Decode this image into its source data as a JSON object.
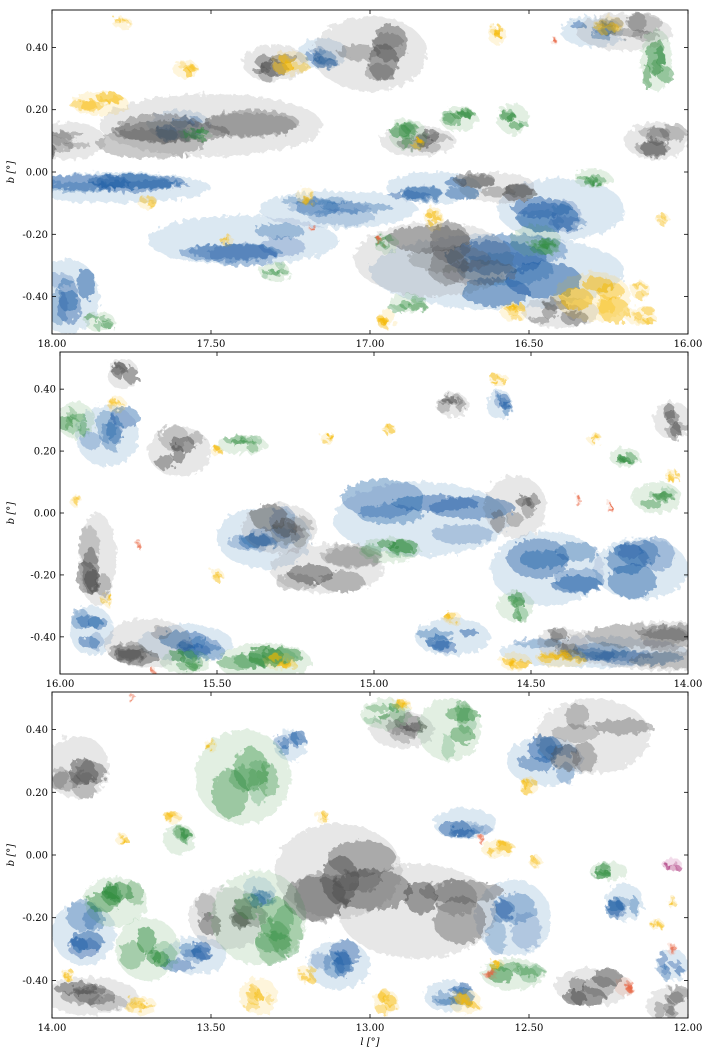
{
  "chart_data": [
    {
      "type": "heatmap",
      "xlabel": "",
      "ylabel": "b [°]",
      "xlim": [
        18.0,
        16.0
      ],
      "ylim": [
        -0.52,
        0.52
      ],
      "x_ticks": [
        "18.00",
        "17.50",
        "17.00",
        "16.50",
        "16.00"
      ],
      "y_ticks": [
        "0.40",
        "0.20",
        "0.00",
        "-0.20",
        "-0.40"
      ],
      "x_tick_values": [
        18.0,
        17.5,
        17.0,
        16.5,
        16.0
      ],
      "y_tick_values": [
        0.4,
        0.2,
        0.0,
        -0.2,
        -0.4
      ],
      "grid": false,
      "series": [
        {
          "color": "#1f5fa6",
          "blobs": [
            [
              17.8,
              -0.05,
              0.3,
              0.05
            ],
            [
              17.4,
              -0.22,
              0.3,
              0.08
            ],
            [
              17.1,
              -0.12,
              0.25,
              0.06
            ],
            [
              16.6,
              -0.32,
              0.4,
              0.12
            ],
            [
              16.4,
              -0.12,
              0.2,
              0.1
            ],
            [
              17.15,
              0.38,
              0.08,
              0.05
            ],
            [
              16.3,
              0.45,
              0.1,
              0.05
            ],
            [
              17.95,
              -0.4,
              0.1,
              0.12
            ],
            [
              17.6,
              0.15,
              0.1,
              0.05
            ],
            [
              16.8,
              -0.05,
              0.15,
              0.05
            ]
          ]
        },
        {
          "color": "#4d4d4d",
          "blobs": [
            [
              17.0,
              0.38,
              0.18,
              0.12
            ],
            [
              17.5,
              0.15,
              0.35,
              0.1
            ],
            [
              16.6,
              -0.05,
              0.12,
              0.05
            ],
            [
              16.8,
              -0.28,
              0.25,
              0.12
            ],
            [
              16.2,
              0.45,
              0.15,
              0.06
            ],
            [
              17.95,
              0.1,
              0.12,
              0.06
            ],
            [
              16.85,
              0.1,
              0.12,
              0.05
            ],
            [
              16.1,
              0.1,
              0.1,
              0.06
            ],
            [
              17.3,
              0.35,
              0.1,
              0.06
            ],
            [
              16.4,
              -0.45,
              0.12,
              0.05
            ]
          ]
        },
        {
          "color": "#2e8b3c",
          "blobs": [
            [
              16.88,
              0.12,
              0.06,
              0.05
            ],
            [
              16.72,
              0.17,
              0.06,
              0.04
            ],
            [
              16.55,
              0.17,
              0.05,
              0.05
            ],
            [
              16.1,
              0.36,
              0.05,
              0.1
            ],
            [
              16.48,
              -0.22,
              0.08,
              0.05
            ],
            [
              17.55,
              0.12,
              0.05,
              0.02
            ],
            [
              17.85,
              -0.48,
              0.05,
              0.03
            ],
            [
              16.88,
              -0.42,
              0.06,
              0.03
            ],
            [
              16.95,
              -0.23,
              0.04,
              0.03
            ],
            [
              17.3,
              -0.32,
              0.05,
              0.03
            ],
            [
              16.3,
              -0.02,
              0.06,
              0.03
            ]
          ]
        },
        {
          "color": "#f5b800",
          "blobs": [
            [
              17.78,
              0.48,
              0.03,
              0.02
            ],
            [
              17.58,
              0.33,
              0.04,
              0.03
            ],
            [
              17.25,
              0.35,
              0.06,
              0.04
            ],
            [
              17.85,
              0.22,
              0.09,
              0.04
            ],
            [
              16.8,
              -0.15,
              0.03,
              0.04
            ],
            [
              16.3,
              -0.4,
              0.12,
              0.08
            ],
            [
              16.15,
              -0.46,
              0.05,
              0.03
            ],
            [
              16.25,
              0.47,
              0.05,
              0.03
            ],
            [
              16.6,
              0.44,
              0.03,
              0.03
            ],
            [
              17.2,
              -0.08,
              0.03,
              0.03
            ],
            [
              17.7,
              -0.1,
              0.03,
              0.02
            ],
            [
              17.45,
              -0.22,
              0.02,
              0.02
            ],
            [
              16.95,
              -0.47,
              0.03,
              0.03
            ],
            [
              16.55,
              -0.45,
              0.04,
              0.03
            ],
            [
              16.08,
              -0.15,
              0.02,
              0.02
            ],
            [
              16.15,
              -0.38,
              0.03,
              0.03
            ],
            [
              16.85,
              0.09,
              0.02,
              0.02
            ]
          ]
        },
        {
          "color": "#e8623f",
          "blobs": [
            [
              17.18,
              -0.18,
              0.01,
              0.015
            ],
            [
              16.97,
              -0.22,
              0.01,
              0.015
            ],
            [
              16.42,
              0.42,
              0.01,
              0.015
            ]
          ]
        }
      ]
    },
    {
      "type": "heatmap",
      "xlabel": "",
      "ylabel": "b [°]",
      "xlim": [
        16.0,
        14.0
      ],
      "ylim": [
        -0.52,
        0.52
      ],
      "x_ticks": [
        "16.00",
        "15.50",
        "15.00",
        "14.50",
        "14.00"
      ],
      "y_ticks": [
        "0.40",
        "0.20",
        "0.00",
        "-0.20",
        "-0.40"
      ],
      "x_tick_values": [
        16.0,
        15.5,
        15.0,
        14.5,
        14.0
      ],
      "y_tick_values": [
        0.4,
        0.2,
        0.0,
        -0.2,
        -0.4
      ],
      "grid": false,
      "series": [
        {
          "color": "#1f5fa6",
          "blobs": [
            [
              14.85,
              -0.02,
              0.28,
              0.12
            ],
            [
              14.45,
              -0.18,
              0.18,
              0.12
            ],
            [
              15.35,
              -0.08,
              0.15,
              0.1
            ],
            [
              15.9,
              -0.38,
              0.07,
              0.08
            ],
            [
              15.6,
              -0.42,
              0.15,
              0.06
            ],
            [
              14.6,
              0.35,
              0.04,
              0.05
            ],
            [
              14.15,
              -0.18,
              0.15,
              0.1
            ],
            [
              14.3,
              -0.45,
              0.3,
              0.05
            ],
            [
              15.85,
              0.25,
              0.1,
              0.1
            ],
            [
              14.75,
              -0.4,
              0.12,
              0.06
            ]
          ]
        },
        {
          "color": "#4d4d4d",
          "blobs": [
            [
              15.72,
              -0.42,
              0.14,
              0.08
            ],
            [
              15.62,
              0.2,
              0.1,
              0.08
            ],
            [
              15.88,
              -0.15,
              0.06,
              0.15
            ],
            [
              15.3,
              -0.05,
              0.12,
              0.08
            ],
            [
              14.05,
              -0.43,
              0.35,
              0.08
            ],
            [
              14.55,
              0.02,
              0.1,
              0.1
            ],
            [
              14.05,
              0.3,
              0.06,
              0.06
            ],
            [
              14.75,
              0.35,
              0.05,
              0.04
            ],
            [
              15.15,
              -0.18,
              0.18,
              0.08
            ],
            [
              14.4,
              -0.42,
              0.08,
              0.05
            ],
            [
              15.8,
              0.45,
              0.05,
              0.05
            ]
          ]
        },
        {
          "color": "#2e8b3c",
          "blobs": [
            [
              15.35,
              -0.48,
              0.15,
              0.06
            ],
            [
              15.6,
              -0.48,
              0.08,
              0.04
            ],
            [
              14.95,
              -0.12,
              0.1,
              0.04
            ],
            [
              14.1,
              0.05,
              0.08,
              0.05
            ],
            [
              14.55,
              -0.3,
              0.06,
              0.05
            ],
            [
              15.42,
              0.22,
              0.08,
              0.03
            ],
            [
              14.2,
              0.18,
              0.05,
              0.03
            ],
            [
              15.95,
              0.3,
              0.06,
              0.06
            ]
          ]
        },
        {
          "color": "#f5b800",
          "blobs": [
            [
              15.82,
              0.35,
              0.03,
              0.03
            ],
            [
              14.6,
              0.43,
              0.03,
              0.02
            ],
            [
              15.3,
              -0.48,
              0.05,
              0.03
            ],
            [
              14.4,
              -0.47,
              0.08,
              0.03
            ],
            [
              14.55,
              -0.48,
              0.05,
              0.03
            ],
            [
              14.75,
              -0.34,
              0.03,
              0.02
            ],
            [
              14.3,
              0.24,
              0.02,
              0.02
            ],
            [
              15.5,
              -0.2,
              0.02,
              0.02
            ],
            [
              15.15,
              0.24,
              0.02,
              0.02
            ],
            [
              15.95,
              0.04,
              0.02,
              0.02
            ],
            [
              14.95,
              0.27,
              0.02,
              0.02
            ],
            [
              14.05,
              0.12,
              0.02,
              0.02
            ],
            [
              15.5,
              0.2,
              0.02,
              0.015
            ],
            [
              15.85,
              -0.28,
              0.02,
              0.02
            ]
          ]
        },
        {
          "color": "#e8623f",
          "blobs": [
            [
              15.7,
              -0.52,
              0.01,
              0.02
            ],
            [
              14.35,
              0.04,
              0.01,
              0.02
            ],
            [
              14.25,
              0.02,
              0.01,
              0.02
            ],
            [
              15.75,
              -0.1,
              0.01,
              0.015
            ]
          ]
        }
      ]
    },
    {
      "type": "heatmap",
      "xlabel": "l [°]",
      "ylabel": "b [°]",
      "xlim": [
        14.0,
        12.0
      ],
      "ylim": [
        -0.52,
        0.52
      ],
      "x_ticks": [
        "14.00",
        "13.50",
        "13.00",
        "12.50",
        "12.00"
      ],
      "y_ticks": [
        "0.40",
        "0.20",
        "0.00",
        "-0.20",
        "-0.40"
      ],
      "x_tick_values": [
        14.0,
        13.5,
        13.0,
        12.5,
        12.0
      ],
      "y_tick_values": [
        0.4,
        0.2,
        0.0,
        -0.2,
        -0.4
      ],
      "grid": false,
      "series": [
        {
          "color": "#1f5fa6",
          "blobs": [
            [
              13.9,
              -0.25,
              0.1,
              0.1
            ],
            [
              12.55,
              -0.2,
              0.12,
              0.12
            ],
            [
              12.2,
              -0.15,
              0.06,
              0.06
            ],
            [
              13.1,
              -0.35,
              0.1,
              0.08
            ],
            [
              12.7,
              0.1,
              0.1,
              0.05
            ],
            [
              12.45,
              0.3,
              0.12,
              0.08
            ],
            [
              13.55,
              -0.32,
              0.1,
              0.06
            ],
            [
              12.75,
              -0.45,
              0.08,
              0.05
            ],
            [
              13.25,
              0.35,
              0.05,
              0.05
            ],
            [
              12.05,
              -0.35,
              0.05,
              0.05
            ],
            [
              13.35,
              -0.12,
              0.05,
              0.05
            ]
          ]
        },
        {
          "color": "#4d4d4d",
          "blobs": [
            [
              12.85,
              -0.18,
              0.25,
              0.15
            ],
            [
              13.1,
              -0.05,
              0.2,
              0.15
            ],
            [
              13.92,
              0.28,
              0.1,
              0.1
            ],
            [
              13.88,
              -0.45,
              0.15,
              0.06
            ],
            [
              12.3,
              0.38,
              0.18,
              0.12
            ],
            [
              12.05,
              -0.48,
              0.08,
              0.06
            ],
            [
              12.3,
              -0.42,
              0.12,
              0.06
            ],
            [
              12.9,
              0.4,
              0.1,
              0.06
            ],
            [
              13.45,
              -0.2,
              0.12,
              0.1
            ]
          ]
        },
        {
          "color": "#2e8b3c",
          "blobs": [
            [
              13.4,
              0.25,
              0.15,
              0.15
            ],
            [
              13.35,
              -0.2,
              0.15,
              0.15
            ],
            [
              13.7,
              -0.3,
              0.1,
              0.1
            ],
            [
              12.75,
              0.4,
              0.1,
              0.1
            ],
            [
              12.95,
              0.45,
              0.08,
              0.05
            ],
            [
              13.8,
              -0.15,
              0.1,
              0.08
            ],
            [
              12.25,
              -0.05,
              0.06,
              0.03
            ],
            [
              12.55,
              -0.38,
              0.1,
              0.05
            ],
            [
              13.6,
              0.05,
              0.05,
              0.05
            ]
          ]
        },
        {
          "color": "#f5b800",
          "blobs": [
            [
              13.35,
              -0.45,
              0.06,
              0.06
            ],
            [
              12.95,
              -0.47,
              0.04,
              0.04
            ],
            [
              12.7,
              -0.47,
              0.05,
              0.04
            ],
            [
              12.5,
              0.22,
              0.03,
              0.03
            ],
            [
              13.2,
              -0.38,
              0.03,
              0.03
            ],
            [
              13.72,
              -0.48,
              0.05,
              0.03
            ],
            [
              12.6,
              0.02,
              0.05,
              0.03
            ],
            [
              12.48,
              -0.02,
              0.02,
              0.02
            ],
            [
              12.9,
              0.48,
              0.03,
              0.02
            ],
            [
              13.62,
              0.12,
              0.03,
              0.02
            ],
            [
              13.5,
              0.35,
              0.02,
              0.02
            ],
            [
              13.78,
              0.05,
              0.02,
              0.02
            ],
            [
              13.95,
              -0.38,
              0.02,
              0.02
            ],
            [
              12.1,
              -0.22,
              0.02,
              0.02
            ],
            [
              13.15,
              0.12,
              0.02,
              0.02
            ],
            [
              12.6,
              -0.35,
              0.02,
              0.02
            ],
            [
              12.05,
              -0.15,
              0.015,
              0.02
            ]
          ]
        },
        {
          "color": "#e8623f",
          "blobs": [
            [
              12.2,
              -0.42,
              0.03,
              0.03
            ],
            [
              12.05,
              -0.3,
              0.015,
              0.02
            ],
            [
              12.62,
              -0.38,
              0.02,
              0.02
            ],
            [
              12.65,
              0.05,
              0.01,
              0.015
            ],
            [
              13.75,
              0.5,
              0.01,
              0.015
            ]
          ]
        },
        {
          "color": "#a0196a",
          "blobs": [
            [
              12.05,
              -0.03,
              0.03,
              0.02
            ]
          ]
        }
      ]
    }
  ]
}
